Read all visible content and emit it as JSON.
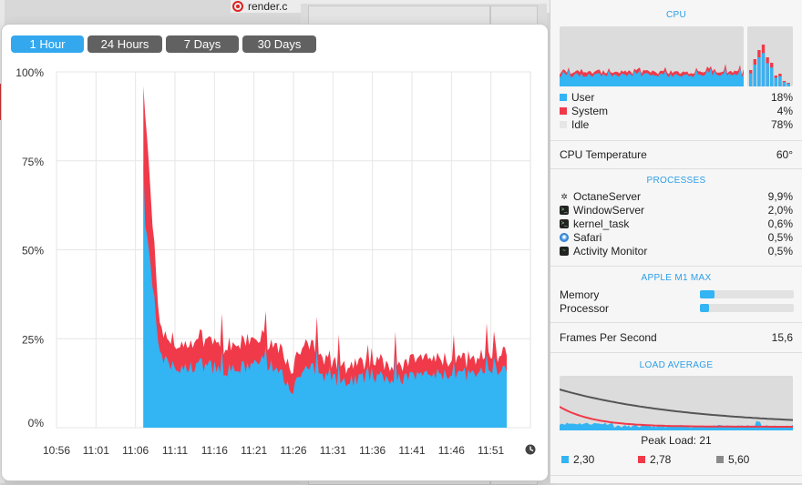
{
  "background": {
    "tab_title": "render.c"
  },
  "history": {
    "ranges": [
      {
        "label": "1 Hour",
        "active": true
      },
      {
        "label": "24 Hours",
        "active": false
      },
      {
        "label": "7 Days",
        "active": false
      },
      {
        "label": "30 Days",
        "active": false
      }
    ]
  },
  "chart_data": {
    "type": "area",
    "y_ticks": [
      "100%",
      "75%",
      "50%",
      "25%",
      "0%"
    ],
    "x_ticks": [
      "10:56",
      "11:01",
      "11:06",
      "11:11",
      "11:16",
      "11:21",
      "11:26",
      "11:31",
      "11:36",
      "11:41",
      "11:46",
      "11:51"
    ],
    "ylim": [
      0,
      100
    ],
    "grid": true,
    "data_start": "11:07",
    "series": [
      {
        "key": "user",
        "color": "#33b4f3",
        "points": [
          [
            "11:07",
            60
          ],
          [
            "11:08",
            45
          ],
          [
            "11:09",
            20
          ],
          [
            "11:10",
            18
          ],
          [
            "11:12",
            16
          ],
          [
            "11:14",
            18
          ],
          [
            "11:16",
            17
          ],
          [
            "11:18",
            16
          ],
          [
            "11:20",
            17
          ],
          [
            "11:22",
            19
          ],
          [
            "11:24",
            16
          ],
          [
            "11:26",
            11
          ],
          [
            "11:27",
            15
          ],
          [
            "11:28",
            17
          ],
          [
            "11:30",
            14
          ],
          [
            "11:32",
            13
          ],
          [
            "11:35",
            14
          ],
          [
            "11:40",
            14
          ],
          [
            "11:45",
            15
          ],
          [
            "11:50",
            15
          ],
          [
            "11:53",
            16
          ]
        ]
      },
      {
        "key": "system",
        "color": "#f03a4a",
        "points": [
          [
            "11:07",
            35
          ],
          [
            "11:08",
            18
          ],
          [
            "11:09",
            8
          ],
          [
            "11:10",
            6
          ],
          [
            "11:12",
            6
          ],
          [
            "11:14",
            7
          ],
          [
            "11:16",
            7
          ],
          [
            "11:18",
            6
          ],
          [
            "11:20",
            7
          ],
          [
            "11:22",
            6
          ],
          [
            "11:24",
            6
          ],
          [
            "11:26",
            6
          ],
          [
            "11:27",
            6
          ],
          [
            "11:28",
            6
          ],
          [
            "11:30",
            4
          ],
          [
            "11:32",
            4
          ],
          [
            "11:35",
            4
          ],
          [
            "11:40",
            4
          ],
          [
            "11:45",
            4
          ],
          [
            "11:50",
            4
          ],
          [
            "11:53",
            4
          ]
        ]
      }
    ]
  },
  "stats": {
    "cpu": {
      "title": "CPU",
      "user": {
        "label": "User",
        "value": "18%",
        "color": "#33b4f3"
      },
      "system": {
        "label": "System",
        "value": "4%",
        "color": "#f03a4a"
      },
      "idle": {
        "label": "Idle",
        "value": "78%",
        "color": "#e6e6e6"
      }
    },
    "temperature": {
      "label": "CPU Temperature",
      "value": "60°"
    },
    "processes": {
      "title": "PROCESSES",
      "items": [
        {
          "name": "OctaneServer",
          "value": "9,9%",
          "icon": "gear-icon"
        },
        {
          "name": "WindowServer",
          "value": "2,0%",
          "icon": "terminal-icon"
        },
        {
          "name": "kernel_task",
          "value": "0,6%",
          "icon": "terminal-icon"
        },
        {
          "name": "Safari",
          "value": "0,5%",
          "icon": "safari-icon"
        },
        {
          "name": "Activity Monitor",
          "value": "0,5%",
          "icon": "activity-monitor-icon"
        }
      ]
    },
    "chip": {
      "title": "APPLE M1 MAX",
      "memory": {
        "label": "Memory",
        "level": 0.16
      },
      "processor": {
        "label": "Processor",
        "level": 0.1
      }
    },
    "fps": {
      "label": "Frames Per Second",
      "value": "15,6"
    },
    "load": {
      "title": "LOAD AVERAGE",
      "peak": "Peak Load: 21",
      "legend": [
        {
          "value": "2,30",
          "color": "#33b4f3"
        },
        {
          "value": "2,78",
          "color": "#f03a4a"
        },
        {
          "value": "5,60",
          "color": "#8a8a8a"
        }
      ]
    }
  }
}
